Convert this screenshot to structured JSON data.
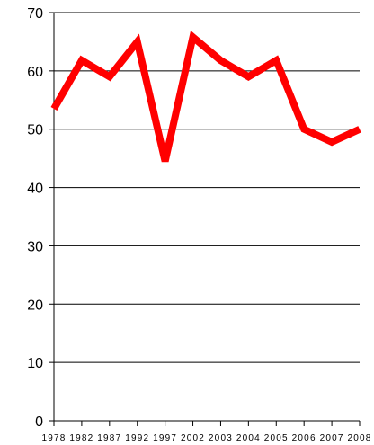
{
  "chart_data": {
    "type": "line",
    "title": "",
    "xlabel": "",
    "ylabel": "",
    "categories": [
      "1978",
      "1982",
      "1987",
      "1992",
      "1997",
      "2002",
      "2003",
      "2004",
      "2005",
      "2006",
      "2007",
      "2008"
    ],
    "series": [
      {
        "values": [
          53.5,
          61.8,
          59.0,
          65.0,
          44.5,
          65.8,
          61.8,
          59.0,
          61.8,
          50.0,
          47.8,
          50.0
        ],
        "color": "#ff0000"
      }
    ],
    "ylim": [
      0,
      70
    ],
    "yticks": [
      0,
      10,
      20,
      30,
      40,
      50,
      60,
      70
    ],
    "grid": "horizontal",
    "legend": "none"
  }
}
